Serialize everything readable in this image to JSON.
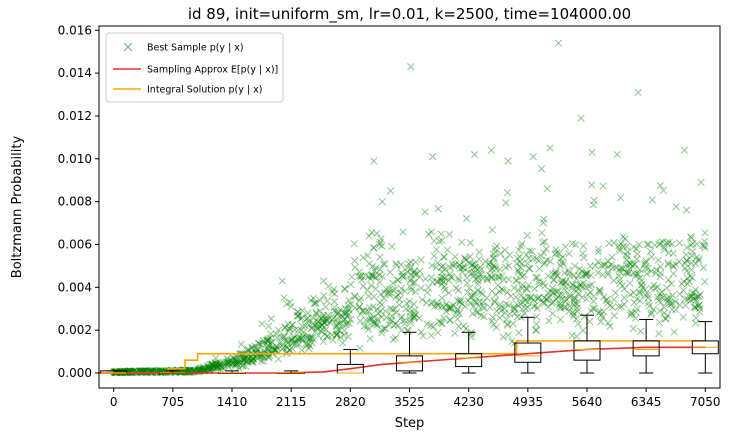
{
  "chart_data": {
    "type": "scatter",
    "title": "id 89, init=uniform_sm, lr=0.01, k=2500, time=104000.00",
    "xlabel": "Step",
    "ylabel": "Boltzmann Probability",
    "xlim": [
      -175,
      7225
    ],
    "ylim": [
      -0.0007,
      0.0162
    ],
    "x_ticks": [
      0,
      705,
      1410,
      2115,
      2820,
      3525,
      4230,
      4935,
      5640,
      6345,
      7050
    ],
    "y_ticks": [
      0.0,
      0.002,
      0.004,
      0.006,
      0.008,
      0.01,
      0.012,
      0.014,
      0.016
    ],
    "y_tick_labels": [
      "0.000",
      "0.002",
      "0.004",
      "0.006",
      "0.008",
      "0.010",
      "0.012",
      "0.014",
      "0.016"
    ],
    "grid": false,
    "legend_position": "top-left",
    "colors": {
      "scatter": "#008000",
      "approx": "#e8302a",
      "integral": "#ffa500",
      "box": "#000000"
    },
    "series": [
      {
        "name": "Best Sample $p(y \\mid x)$",
        "legend_label": "Best Sample p(y | x)",
        "kind": "scatter",
        "marker": "x",
        "trend": [
          [
            0,
            5e-05
          ],
          [
            1000,
            0.0001
          ],
          [
            1500,
            0.0005
          ],
          [
            2000,
            0.0012
          ],
          [
            2500,
            0.0022
          ],
          [
            2820,
            0.0026
          ],
          [
            3525,
            0.0029
          ],
          [
            4230,
            0.0032
          ],
          [
            4935,
            0.0034
          ],
          [
            5640,
            0.0035
          ],
          [
            7050,
            0.0036
          ]
        ],
        "outliers": [
          [
            2010,
            0.0043
          ],
          [
            2100,
            0.0033
          ],
          [
            2500,
            0.0043
          ],
          [
            3100,
            0.0099
          ],
          [
            3200,
            0.008
          ],
          [
            3300,
            0.0085
          ],
          [
            3540,
            0.0143
          ],
          [
            3800,
            0.0101
          ],
          [
            4300,
            0.0102
          ],
          [
            4500,
            0.0104
          ],
          [
            4700,
            0.0099
          ],
          [
            5000,
            0.0101
          ],
          [
            5200,
            0.0105
          ],
          [
            5300,
            0.0154
          ],
          [
            5570,
            0.0119
          ],
          [
            5700,
            0.0103
          ],
          [
            6000,
            0.0102
          ],
          [
            6250,
            0.0131
          ],
          [
            6800,
            0.0104
          ],
          [
            7000,
            0.0089
          ]
        ]
      },
      {
        "name": "Sampling Approx $E[p(y \\mid x)]$",
        "legend_label": "Sampling Approx E[p(y | x)]",
        "kind": "line",
        "points": [
          [
            -175,
            0.0
          ],
          [
            2000,
            0.0
          ],
          [
            2500,
            5e-05
          ],
          [
            2820,
            0.0002
          ],
          [
            3200,
            0.0004
          ],
          [
            3525,
            0.0005
          ],
          [
            4230,
            0.0007
          ],
          [
            4935,
            0.0009
          ],
          [
            5640,
            0.0011
          ],
          [
            6345,
            0.0012
          ],
          [
            7050,
            0.0012
          ]
        ]
      },
      {
        "name": "Integral Solution $p(y \\mid x)$",
        "legend_label": "Integral Solution p(y | x)",
        "kind": "step",
        "points": [
          [
            -175,
            0.0
          ],
          [
            650,
            0.0
          ],
          [
            650,
            0.0002
          ],
          [
            850,
            0.0002
          ],
          [
            850,
            0.0006
          ],
          [
            1000,
            0.0006
          ],
          [
            1000,
            0.0009
          ],
          [
            2115,
            0.0009
          ],
          [
            2115,
            0.0009
          ],
          [
            4800,
            0.0009
          ],
          [
            4800,
            0.0015
          ],
          [
            7050,
            0.0015
          ]
        ]
      }
    ],
    "boxplots": [
      {
        "x": 0,
        "whislo": 0.0,
        "q1": 0.0,
        "med": 0.0,
        "q3": 0.0001,
        "whishi": 0.0001
      },
      {
        "x": 705,
        "whislo": 0.0,
        "q1": 0.0,
        "med": 0.0,
        "q3": 0.0,
        "whishi": 0.0001
      },
      {
        "x": 1410,
        "whislo": 0.0,
        "q1": 0.0,
        "med": 0.0,
        "q3": 0.0,
        "whishi": 0.0001
      },
      {
        "x": 2115,
        "whislo": 0.0,
        "q1": 0.0,
        "med": 0.0,
        "q3": 0.0,
        "whishi": 0.0001
      },
      {
        "x": 2820,
        "whislo": 0.0,
        "q1": 0.0,
        "med": 0.0,
        "q3": 0.0004,
        "whishi": 0.0011
      },
      {
        "x": 3525,
        "whislo": 0.0,
        "q1": 0.0001,
        "med": 0.0005,
        "q3": 0.0008,
        "whishi": 0.0019
      },
      {
        "x": 4230,
        "whislo": 0.0,
        "q1": 0.0003,
        "med": 0.0007,
        "q3": 0.0009,
        "whishi": 0.0019
      },
      {
        "x": 4935,
        "whislo": 0.0,
        "q1": 0.0005,
        "med": 0.0008,
        "q3": 0.0014,
        "whishi": 0.0026
      },
      {
        "x": 5640,
        "whislo": 0.0,
        "q1": 0.0006,
        "med": 0.0011,
        "q3": 0.0015,
        "whishi": 0.0027
      },
      {
        "x": 6345,
        "whislo": 0.0,
        "q1": 0.0008,
        "med": 0.0011,
        "q3": 0.0015,
        "whishi": 0.0025
      },
      {
        "x": 7050,
        "whislo": 0.0,
        "q1": 0.0009,
        "med": 0.0012,
        "q3": 0.0015,
        "whishi": 0.0024
      }
    ]
  }
}
